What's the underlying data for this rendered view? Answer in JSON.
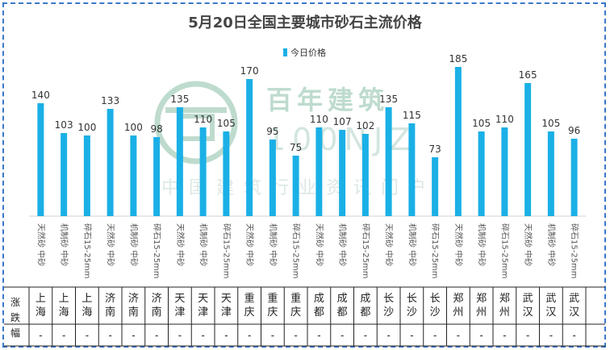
{
  "chart_data": {
    "type": "bar",
    "title": "5月20日全国主要城市砂石主流价格",
    "series": [
      {
        "name": "今日价格",
        "color": "#1ab0e6",
        "values": [
          140,
          103,
          100,
          133,
          100,
          98,
          135,
          110,
          105,
          170,
          95,
          75,
          110,
          107,
          102,
          135,
          115,
          73,
          185,
          105,
          110,
          165,
          105,
          96
        ]
      }
    ],
    "categories": [
      "天然砂 中砂",
      "机制砂 中砂",
      "碎石15-25mm",
      "天然砂 中砂",
      "机制砂 中砂",
      "碎石15-25mm",
      "天然砂 中砂",
      "机制砂 中砂",
      "碎石15-25mm",
      "天然砂 中砂",
      "机制砂 中砂",
      "碎石15-25mm",
      "天然砂 中砂",
      "机制砂 中砂",
      "碎石15-25mm",
      "天然砂 中砂",
      "机制砂 中砂",
      "碎石15-25mm",
      "天然砂 中砂",
      "机制砂 中砂",
      "碎石15-25mm",
      "天然砂 中砂",
      "机制砂 中砂",
      "碎石15-25mm"
    ],
    "cities": [
      "上海",
      "上海",
      "上海",
      "济南",
      "济南",
      "济南",
      "天津",
      "天津",
      "天津",
      "重庆",
      "重庆",
      "重庆",
      "成都",
      "成都",
      "成都",
      "长沙",
      "长沙",
      "长沙",
      "郑州",
      "郑州",
      "郑州",
      "武汉",
      "武汉",
      "武汉"
    ],
    "changes": [
      "-",
      "-",
      "-",
      "-",
      "-",
      "-",
      "-",
      "-",
      "-",
      "-",
      "-",
      "-",
      "-",
      "-",
      "-",
      "-",
      "-",
      "-",
      "-",
      "-",
      "-",
      "-",
      "-",
      "-"
    ],
    "change_row_label": "涨跌幅",
    "legend_position": "top",
    "ylim": [
      0,
      200
    ],
    "grid": false
  },
  "watermark": {
    "brand": "百年建筑",
    "code": "100NJZ",
    "slogan": "中国建筑行业资讯门户"
  }
}
